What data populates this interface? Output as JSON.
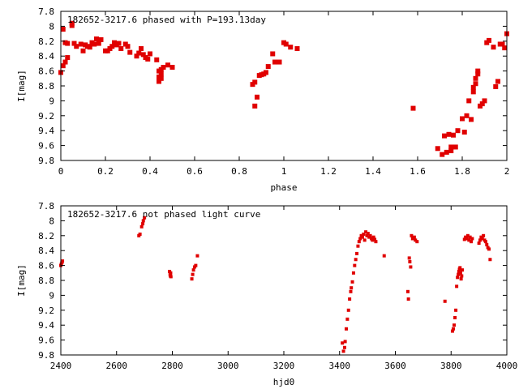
{
  "chart_data": [
    {
      "type": "scatter",
      "title": "182652-3217.6 phased with P=193.13day",
      "xlabel": "phase",
      "ylabel": "I[mag]",
      "xlim": [
        0,
        2
      ],
      "ylim": [
        9.8,
        7.8
      ],
      "y_inverted": true,
      "grid": false,
      "xticks": [
        "0",
        "0.2",
        "0.4",
        "0.6",
        "0.8",
        "1",
        "1.2",
        "1.4",
        "1.6",
        "1.8",
        "2"
      ],
      "yticks": [
        "7.8",
        "8",
        "8.2",
        "8.4",
        "8.6",
        "8.8",
        "9",
        "9.2",
        "9.4",
        "9.6",
        "9.8"
      ],
      "color": "#e00000",
      "series": [
        {
          "x": [
            0.0,
            0.01,
            0.01,
            0.02,
            0.02,
            0.03,
            0.03,
            0.05,
            0.05,
            0.06,
            0.07,
            0.09,
            0.1,
            0.11,
            0.12,
            0.13,
            0.14,
            0.15,
            0.16,
            0.17,
            0.18,
            0.2,
            0.21,
            0.22,
            0.23,
            0.24,
            0.25,
            0.26,
            0.27,
            0.29,
            0.3,
            0.31,
            0.34,
            0.35,
            0.36,
            0.37,
            0.38,
            0.39,
            0.4,
            0.43,
            0.44,
            0.44,
            0.44,
            0.44,
            0.45,
            0.45,
            0.45,
            0.46,
            0.48,
            0.5,
            0.86,
            0.87,
            0.87,
            0.88,
            0.89,
            0.9,
            0.91,
            0.92,
            0.93,
            0.95,
            0.96,
            0.98,
            1.0,
            1.01,
            1.03,
            1.06,
            1.58,
            1.69,
            1.71,
            1.72,
            1.73,
            1.74,
            1.75,
            1.75,
            1.76,
            1.77,
            1.78,
            1.8,
            1.81,
            1.82,
            1.83,
            1.84,
            1.85,
            1.85,
            1.86,
            1.86,
            1.87,
            1.87,
            1.88,
            1.89,
            1.9,
            1.91,
            1.92,
            1.94,
            1.95,
            1.96,
            1.97,
            1.98,
            1.99,
            2.0
          ],
          "y": [
            8.62,
            8.04,
            8.53,
            8.22,
            8.48,
            8.23,
            8.42,
            7.99,
            7.96,
            8.23,
            8.27,
            8.24,
            8.33,
            8.25,
            8.27,
            8.28,
            8.22,
            8.24,
            8.17,
            8.23,
            8.18,
            8.33,
            8.33,
            8.3,
            8.27,
            8.22,
            8.25,
            8.23,
            8.3,
            8.24,
            8.27,
            8.35,
            8.4,
            8.36,
            8.3,
            8.38,
            8.42,
            8.44,
            8.37,
            8.45,
            8.68,
            8.72,
            8.74,
            8.6,
            8.58,
            8.64,
            8.7,
            8.55,
            8.52,
            8.55,
            8.78,
            8.75,
            9.07,
            8.95,
            8.66,
            8.65,
            8.64,
            8.62,
            8.54,
            8.37,
            8.48,
            8.48,
            8.22,
            8.24,
            8.28,
            8.3,
            9.1,
            9.64,
            9.72,
            9.47,
            9.69,
            9.45,
            9.67,
            9.62,
            9.46,
            9.62,
            9.4,
            9.24,
            9.42,
            9.2,
            9.0,
            9.25,
            8.88,
            8.82,
            8.77,
            8.7,
            8.64,
            8.6,
            9.07,
            9.04,
            9.0,
            8.22,
            8.19,
            8.28,
            8.81,
            8.74,
            8.24,
            8.24,
            8.29,
            8.1
          ]
        }
      ]
    },
    {
      "type": "scatter",
      "title": "182652-3217.6 not phased light curve",
      "xlabel": "hjd0",
      "ylabel": "I[mag]",
      "xlim": [
        2400,
        4000
      ],
      "ylim": [
        9.8,
        7.8
      ],
      "y_inverted": true,
      "grid": false,
      "xticks": [
        "2400",
        "2600",
        "2800",
        "3000",
        "3200",
        "3400",
        "3600",
        "3800",
        "4000"
      ],
      "yticks": [
        "7.8",
        "8",
        "8.2",
        "8.4",
        "8.6",
        "8.8",
        "9",
        "9.2",
        "9.4",
        "9.6",
        "9.8"
      ],
      "color": "#e00000",
      "series": [
        {
          "x": [
            2400,
            2402,
            2404,
            2406,
            2680,
            2684,
            2690,
            2694,
            2696,
            2700,
            2790,
            2792,
            2793,
            2794,
            2795,
            2870,
            2873,
            2876,
            2880,
            2884,
            2890,
            3410,
            3414,
            3418,
            3420,
            3424,
            3428,
            3432,
            3436,
            3440,
            3442,
            3446,
            3450,
            3454,
            3458,
            3462,
            3466,
            3470,
            3474,
            3478,
            3482,
            3486,
            3490,
            3494,
            3498,
            3502,
            3506,
            3510,
            3514,
            3518,
            3522,
            3526,
            3530,
            3560,
            3645,
            3647,
            3650,
            3652,
            3655,
            3658,
            3662,
            3668,
            3672,
            3678,
            3778,
            3805,
            3808,
            3811,
            3814,
            3817,
            3820,
            3823,
            3826,
            3828,
            3830,
            3832,
            3834,
            3836,
            3838,
            3840,
            3848,
            3852,
            3856,
            3860,
            3864,
            3868,
            3872,
            3876,
            3900,
            3904,
            3908,
            3912,
            3916,
            3920,
            3924,
            3928,
            3932,
            3936,
            3940
          ],
          "y": [
            8.6,
            8.58,
            8.56,
            8.54,
            8.2,
            8.18,
            8.08,
            8.04,
            8.0,
            7.96,
            8.68,
            8.72,
            8.74,
            8.7,
            8.75,
            8.78,
            8.72,
            8.66,
            8.62,
            8.6,
            8.47,
            9.64,
            9.75,
            9.7,
            9.62,
            9.45,
            9.32,
            9.2,
            9.05,
            8.95,
            8.9,
            8.82,
            8.7,
            8.6,
            8.52,
            8.44,
            8.34,
            8.28,
            8.24,
            8.2,
            8.22,
            8.18,
            8.26,
            8.15,
            8.2,
            8.17,
            8.22,
            8.2,
            8.24,
            8.26,
            8.22,
            8.25,
            8.28,
            8.47,
            8.95,
            9.05,
            8.5,
            8.55,
            8.62,
            8.2,
            8.24,
            8.22,
            8.26,
            8.28,
            9.08,
            9.48,
            9.45,
            9.4,
            9.3,
            9.2,
            8.88,
            8.76,
            8.72,
            8.68,
            8.65,
            8.63,
            8.7,
            8.78,
            8.74,
            8.66,
            8.25,
            8.22,
            8.24,
            8.2,
            8.26,
            8.22,
            8.28,
            8.24,
            8.3,
            8.26,
            8.22,
            8.24,
            8.2,
            8.26,
            8.28,
            8.32,
            8.36,
            8.38,
            8.52
          ]
        }
      ]
    }
  ]
}
